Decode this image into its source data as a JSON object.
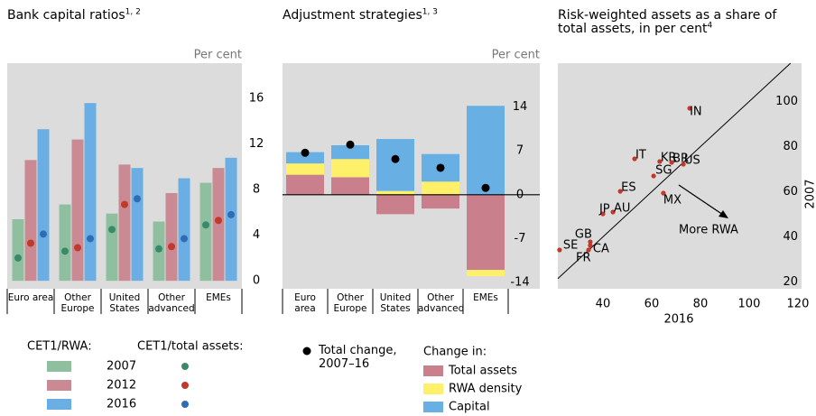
{
  "chart_data": [
    {
      "type": "bar-dot",
      "title": "Bank capital ratios",
      "title_sup": "1, 2",
      "y_unit": "Per cent",
      "categories": [
        "Euro area",
        "Other Europe",
        "United States",
        "Other advanced",
        "EMEs"
      ],
      "ylim": [
        -0.7,
        19.1
      ],
      "yticks": [
        0,
        4,
        8,
        12,
        16
      ],
      "legend_titles": [
        "CET1/RWA:",
        "CET1/total assets:"
      ],
      "series": [
        {
          "name": "2007",
          "color": "#8fbf9f",
          "values": [
            5.4,
            6.7,
            5.9,
            5.2,
            8.6
          ]
        },
        {
          "name": "2012",
          "color": "#c98a94",
          "values": [
            10.6,
            12.4,
            10.2,
            7.7,
            9.9
          ]
        },
        {
          "name": "2016",
          "color": "#6aaee3",
          "values": [
            13.3,
            15.6,
            9.9,
            9.0,
            10.8
          ]
        }
      ],
      "dot_series": [
        {
          "color": "#3a8a6a",
          "values": [
            2.0,
            2.6,
            4.5,
            2.8,
            4.9
          ]
        },
        {
          "color": "#c0392b",
          "values": [
            3.3,
            2.9,
            6.7,
            3.0,
            5.3
          ]
        },
        {
          "color": "#2e6db4",
          "values": [
            4.1,
            3.7,
            7.2,
            3.7,
            5.8
          ]
        }
      ]
    },
    {
      "type": "stacked-bar-dot",
      "title": "Adjustment strategies",
      "title_sup": "1, 3",
      "y_unit": "Per cent",
      "categories": [
        "Euro area",
        "Other Europe",
        "United States",
        "Other advanced",
        "EMEs"
      ],
      "ylim": [
        -15,
        21
      ],
      "yticks": [
        -14,
        -7,
        0,
        7,
        14
      ],
      "legend_title": "Change in:",
      "series": [
        {
          "name": "Total assets",
          "color": "#c9808c",
          "values": [
            3.2,
            2.8,
            -3.1,
            -2.2,
            -12.0
          ]
        },
        {
          "name": "RWA density",
          "color": "#fff06a",
          "values": [
            1.8,
            2.9,
            0.6,
            2.1,
            -1.0
          ]
        },
        {
          "name": "Capital",
          "color": "#68b0e3",
          "values": [
            1.8,
            2.2,
            8.3,
            4.4,
            14.2
          ]
        }
      ],
      "total": {
        "name": "Total change, 2007–16",
        "color": "#000000",
        "values": [
          6.7,
          8.0,
          5.7,
          4.3,
          1.1
        ]
      }
    },
    {
      "type": "scatter",
      "title": "Risk-weighted assets as a share of total assets, in per cent",
      "title_sup": "4",
      "xlabel": "2016",
      "ylabel": "2007",
      "annotation": "More RWA",
      "color": "#c0392b",
      "xlim": [
        21.5,
        121.5
      ],
      "xticks": [
        40,
        60,
        80,
        100,
        120
      ],
      "ylim": [
        17,
        117
      ],
      "yticks": [
        20,
        40,
        60,
        80,
        100
      ],
      "labels": [
        "IN",
        "IT",
        "KR",
        "BR",
        "US",
        "SG",
        "ES",
        "MX",
        "JP",
        "AU",
        "GB",
        "CA",
        "FR",
        "SE"
      ],
      "x": [
        75.6,
        53.0,
        63.3,
        68.2,
        73.0,
        60.8,
        47.1,
        64.8,
        40.0,
        44.1,
        34.8,
        34.8,
        34.1,
        22.2
      ],
      "y": [
        97.0,
        74.6,
        73.4,
        73.0,
        72.2,
        67.0,
        60.2,
        59.4,
        50.2,
        51.0,
        37.8,
        36.2,
        34.2,
        34.2
      ]
    }
  ]
}
